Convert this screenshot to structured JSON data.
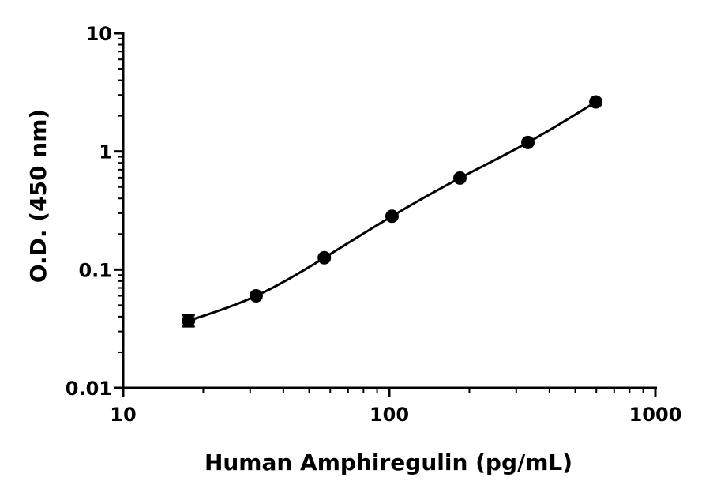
{
  "chart_data": {
    "type": "scatter",
    "xlabel": "Human  Amphiregulin (pg/mL)",
    "ylabel": "O.D. (450 nm)",
    "xscale": "log",
    "yscale": "log",
    "xlim": [
      10,
      1000
    ],
    "ylim": [
      0.01,
      10
    ],
    "x_ticks": [
      "10",
      "100",
      "1000"
    ],
    "y_ticks": [
      "0.01",
      "0.1",
      "1",
      "10"
    ],
    "grid": false,
    "legend": "none",
    "series": [
      {
        "x": [
          17.6,
          31.6,
          57.0,
          102.4,
          184.3,
          331.8,
          597.2
        ],
        "y": [
          0.037,
          0.06,
          0.126,
          0.283,
          0.595,
          1.19,
          2.62
        ],
        "y_error": [
          0.004,
          0.003,
          0.004,
          0.005,
          0.01,
          0.02,
          0.04
        ],
        "fit_curve": true
      }
    ],
    "color": "#000000"
  }
}
